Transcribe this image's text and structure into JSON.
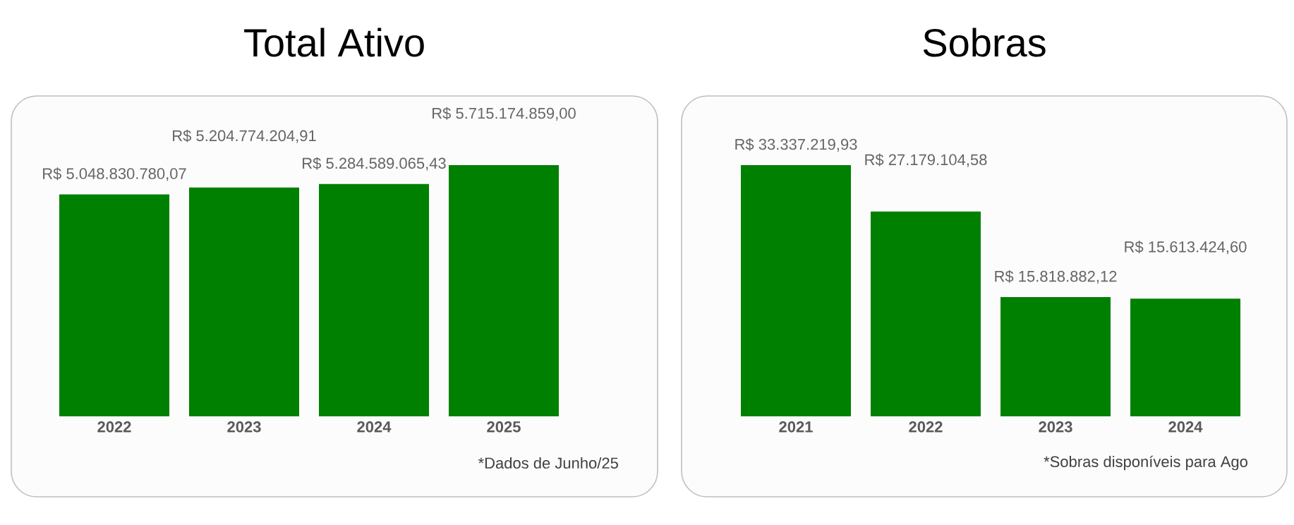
{
  "chart_data": [
    {
      "type": "bar",
      "title": "Total Ativo",
      "categories": [
        "2022",
        "2023",
        "2024",
        "2025"
      ],
      "values": [
        5048830780.07,
        5204774204.91,
        5284589065.43,
        5715174859.0
      ],
      "value_labels": [
        "R$ 5.048.830.780,07",
        "R$ 5.204.774.204,91",
        "R$ 5.284.589.065,43",
        "R$ 5.715.174.859,00"
      ],
      "color": "#008000",
      "tick_labels": "x",
      "annotations": [
        "*Dados de Junho/25"
      ]
    },
    {
      "type": "bar",
      "title": "Sobras",
      "categories": [
        "2021",
        "2022",
        "2023",
        "2024"
      ],
      "values": [
        33337219.93,
        27179104.58,
        15818882.12,
        15613424.6
      ],
      "value_labels": [
        "R$ 33.337.219,93",
        "R$ 27.179.104,58",
        "R$ 15.818.882,12",
        "R$ 15.613.424,60"
      ],
      "color": "#008000",
      "tick_labels": "x",
      "annotations": [
        "*Sobras disponíveis para Ago"
      ]
    }
  ]
}
